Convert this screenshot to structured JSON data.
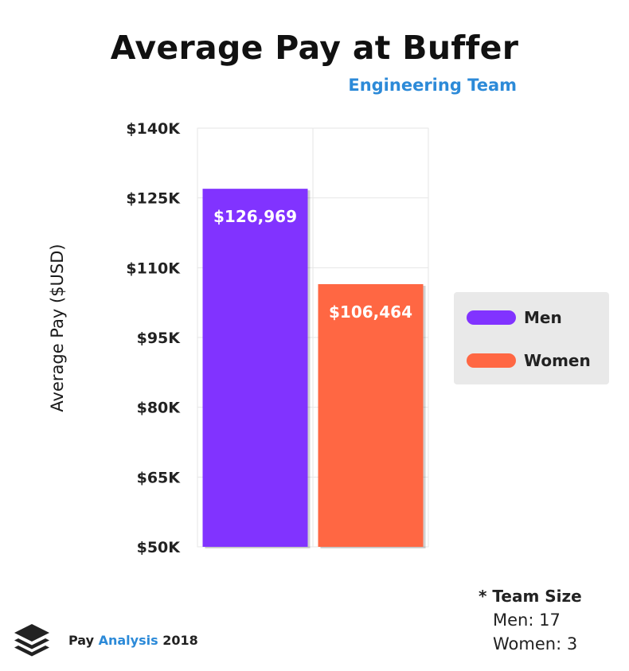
{
  "header": {
    "title": "Average Pay at Buffer",
    "subtitle": "Engineering Team"
  },
  "chart_data": {
    "type": "bar",
    "categories": [
      "Men",
      "Women"
    ],
    "values": [
      126969,
      106464
    ],
    "value_labels": [
      "$126,969",
      "$106,464"
    ],
    "colors": [
      "#8133ff",
      "#ff6743"
    ],
    "ylabel": "Average Pay ($USD)",
    "ylim": [
      50000,
      140000
    ],
    "yticks": [
      50000,
      65000,
      80000,
      95000,
      110000,
      125000,
      140000
    ],
    "ytick_labels": [
      "$50K",
      "$65K",
      "$80K",
      "$95K",
      "$110K",
      "$125K",
      "$140K"
    ],
    "grid": true,
    "legend": {
      "placement": "right",
      "entries": [
        "Men",
        "Women"
      ]
    }
  },
  "team_size": {
    "title": "* Team Size",
    "lines": [
      "Men: 17",
      "Women: 3"
    ]
  },
  "brand": {
    "prefix": "Pay",
    "accent": "Analysis",
    "suffix": "2018",
    "logo_icon": "buffer-stack-icon"
  }
}
